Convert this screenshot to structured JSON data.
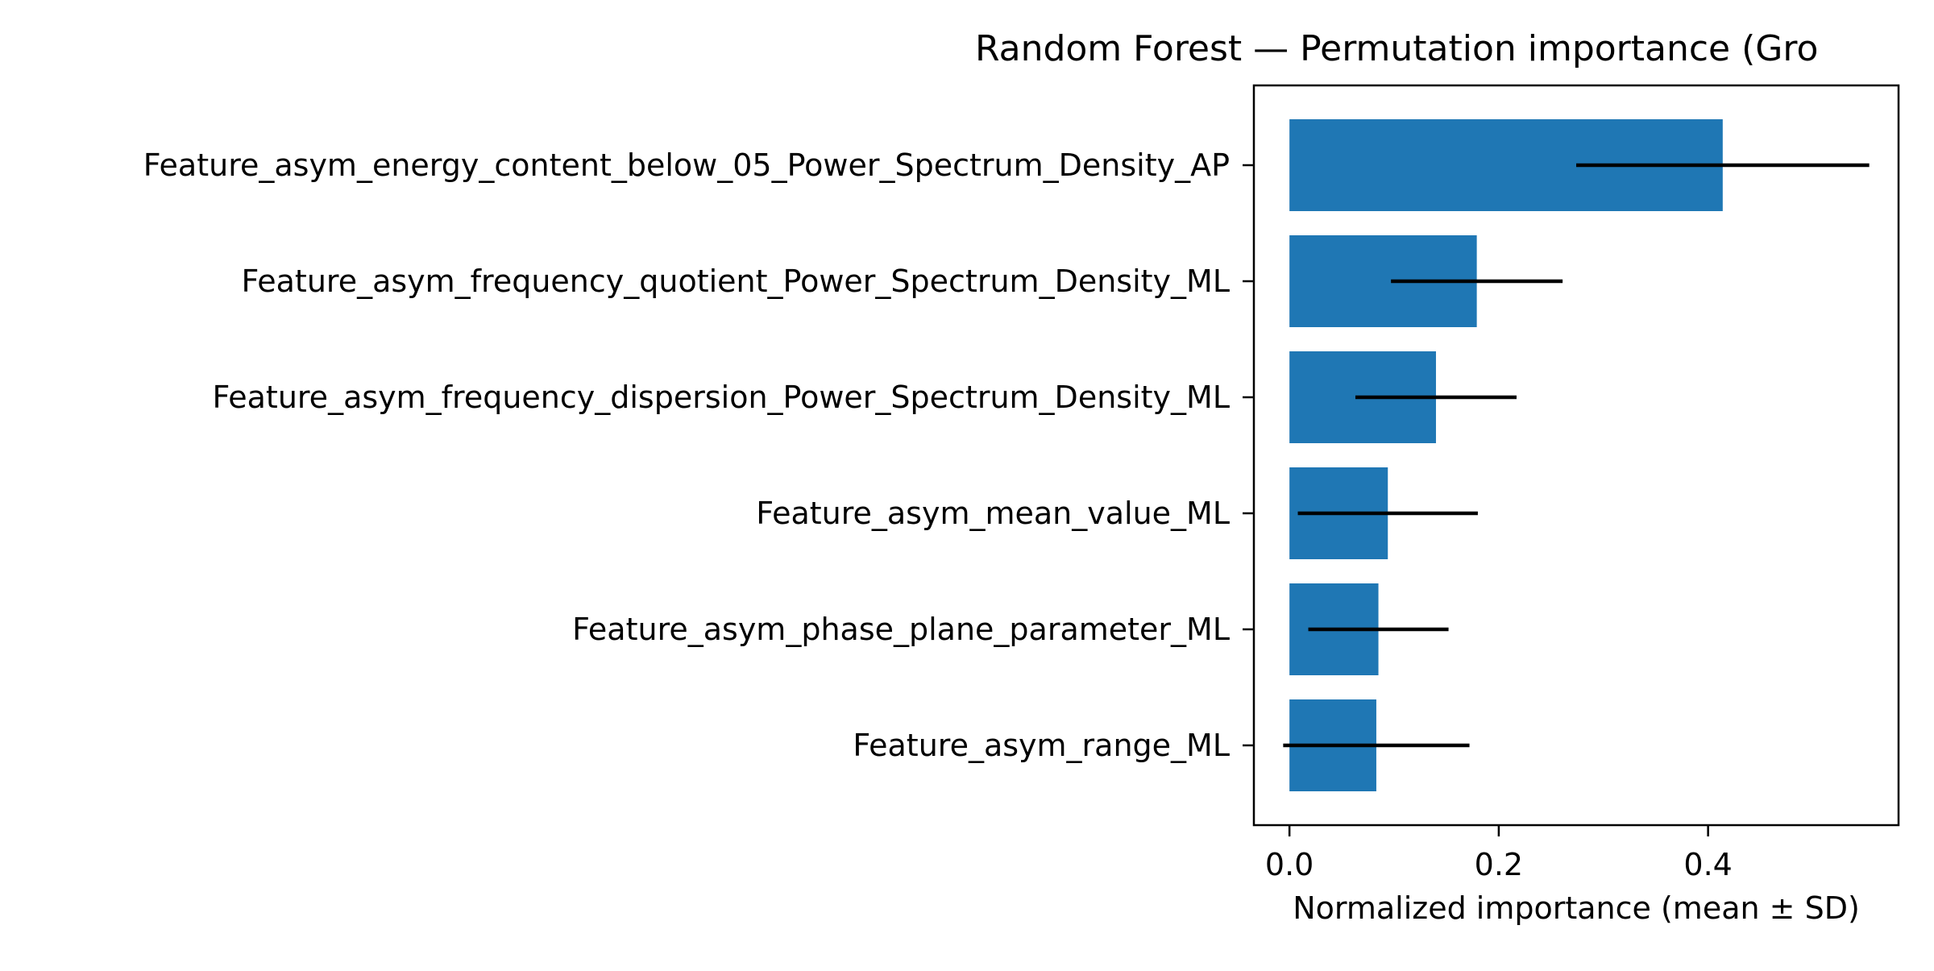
{
  "chart_data": {
    "type": "bar",
    "orientation": "horizontal",
    "title": "Random Forest — Permutation importance (Gro",
    "xlabel": "Normalized importance (mean ± SD)",
    "ylabel": "",
    "categories": [
      "Feature_asym_energy_content_below_05_Power_Spectrum_Density_AP",
      "Feature_asym_frequency_quotient_Power_Spectrum_Density_ML",
      "Feature_asym_frequency_dispersion_Power_Spectrum_Density_ML",
      "Feature_asym_mean_value_ML",
      "Feature_asym_phase_plane_parameter_ML",
      "Feature_asym_range_ML"
    ],
    "values": [
      0.414,
      0.179,
      0.14,
      0.094,
      0.085,
      0.083
    ],
    "errors": [
      0.14,
      0.082,
      0.077,
      0.086,
      0.067,
      0.089
    ],
    "xlim": [
      -0.034,
      0.582
    ],
    "xticks": [
      0.0,
      0.2,
      0.4
    ],
    "xtick_labels": [
      "0.0",
      "0.2",
      "0.4"
    ],
    "bar_color": "#1f77b4",
    "error_color": "#000000",
    "grid": false,
    "legend": "none"
  }
}
